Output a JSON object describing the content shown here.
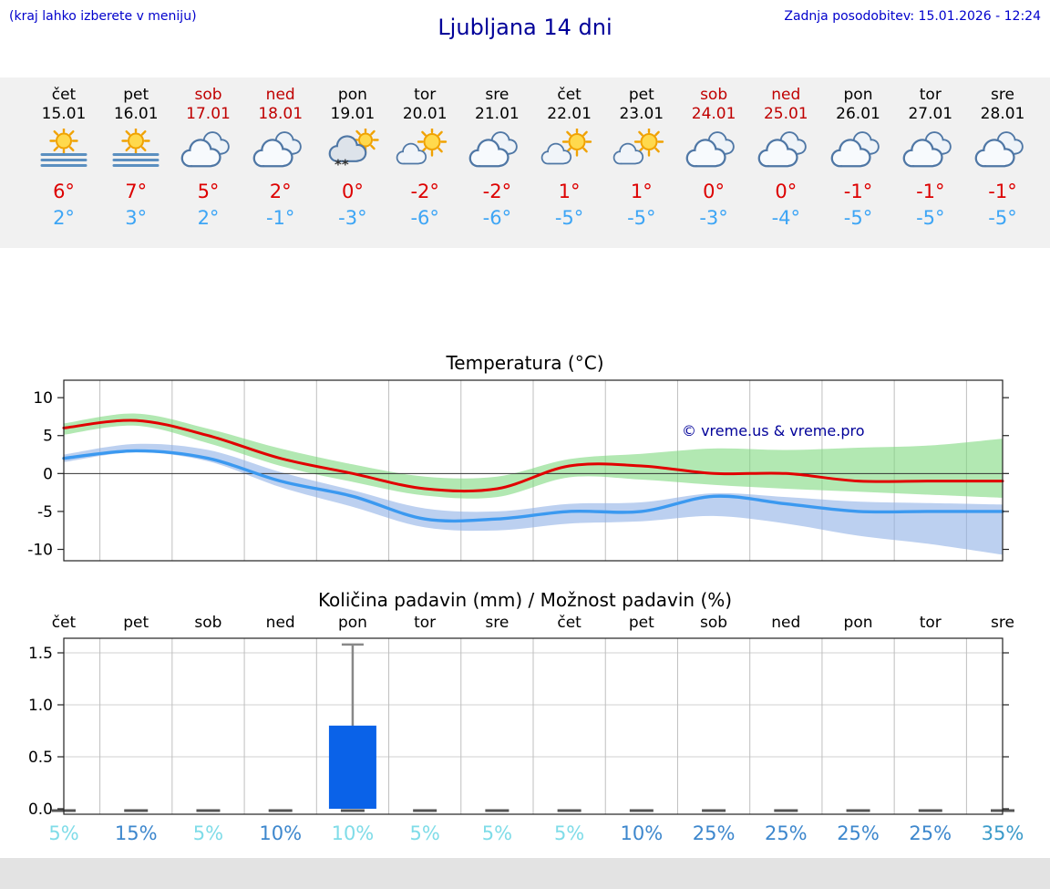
{
  "header": {
    "hint": "(kraj lahko izberete v meniju)",
    "title": "Ljubljana 14 dni",
    "updated": "Zadnja posodobitev: 15.01.2026 - 12:24"
  },
  "colors": {
    "link_blue": "#0000cc",
    "title_blue": "#000099",
    "strip_background": "#f1f1f1",
    "weekend_red": "#c00000",
    "high_temp_red": "#dd0000",
    "low_temp_blue": "#3da5f5",
    "bar_blue": "#0a62e8",
    "footer_gray": "#e3e3e3"
  },
  "forecast": {
    "days": [
      {
        "name": "čet",
        "date": "15.01",
        "weekend": false,
        "icon": "sun-fog",
        "high": "6°",
        "low": "2°"
      },
      {
        "name": "pet",
        "date": "16.01",
        "weekend": false,
        "icon": "sun-fog",
        "high": "7°",
        "low": "3°"
      },
      {
        "name": "sob",
        "date": "17.01",
        "weekend": true,
        "icon": "cloudy",
        "high": "5°",
        "low": "2°"
      },
      {
        "name": "ned",
        "date": "18.01",
        "weekend": true,
        "icon": "cloudy",
        "high": "2°",
        "low": "-1°"
      },
      {
        "name": "pon",
        "date": "19.01",
        "weekend": false,
        "icon": "snow-sun",
        "high": "0°",
        "low": "-3°"
      },
      {
        "name": "tor",
        "date": "20.01",
        "weekend": false,
        "icon": "sun-cloud",
        "high": "-2°",
        "low": "-6°"
      },
      {
        "name": "sre",
        "date": "21.01",
        "weekend": false,
        "icon": "cloudy",
        "high": "-2°",
        "low": "-6°"
      },
      {
        "name": "čet",
        "date": "22.01",
        "weekend": false,
        "icon": "sun-cloud",
        "high": "1°",
        "low": "-5°"
      },
      {
        "name": "pet",
        "date": "23.01",
        "weekend": false,
        "icon": "sun-cloud",
        "high": "1°",
        "low": "-5°"
      },
      {
        "name": "sob",
        "date": "24.01",
        "weekend": true,
        "icon": "cloudy",
        "high": "0°",
        "low": "-3°"
      },
      {
        "name": "ned",
        "date": "25.01",
        "weekend": true,
        "icon": "cloudy",
        "high": "0°",
        "low": "-4°"
      },
      {
        "name": "pon",
        "date": "26.01",
        "weekend": false,
        "icon": "cloudy",
        "high": "-1°",
        "low": "-5°"
      },
      {
        "name": "tor",
        "date": "27.01",
        "weekend": false,
        "icon": "cloudy",
        "high": "-1°",
        "low": "-5°"
      },
      {
        "name": "sre",
        "date": "28.01",
        "weekend": false,
        "icon": "cloudy",
        "high": "-1°",
        "low": "-5°"
      }
    ]
  },
  "chart_data": [
    {
      "type": "line",
      "title": "Temperatura (°C)",
      "x_categories": [
        "čet",
        "pet",
        "sob",
        "ned",
        "pon",
        "tor",
        "sre",
        "čet",
        "pet",
        "sob",
        "ned",
        "pon",
        "tor",
        "sre"
      ],
      "yticks": [
        10,
        5,
        0,
        -5,
        -10
      ],
      "ylim": [
        -11.5,
        12.3
      ],
      "grid": "vertical day separators, dark zero line, black frame",
      "watermark": "© vreme.us & vreme.pro",
      "watermark_color": "#000099",
      "series": [
        {
          "name": "max temperature",
          "color": "#e10000",
          "width": 3,
          "values": [
            6,
            7,
            5,
            2,
            0,
            -2,
            -2,
            1,
            1,
            0,
            0,
            -1,
            -1,
            -1
          ]
        },
        {
          "name": "min temperature",
          "color": "#3b99f0",
          "width": 3.4,
          "values": [
            2,
            3,
            2,
            -1,
            -3,
            -6,
            -6,
            -5,
            -5,
            -3,
            -4,
            -5,
            -5,
            -5
          ]
        }
      ],
      "bands": [
        {
          "name": "max-uncertainty",
          "color": "#7fd87f",
          "opacity": 0.6,
          "upper": [
            6.6,
            7.9,
            5.9,
            3.3,
            1.2,
            -0.4,
            -0.4,
            1.9,
            2.6,
            3.3,
            3.1,
            3.4,
            3.7,
            4.6
          ],
          "lower": [
            5.1,
            6.3,
            4,
            1,
            -1.1,
            -2.9,
            -3.1,
            -0.5,
            -0.8,
            -1.5,
            -2,
            -2.4,
            -2.8,
            -3.2
          ]
        },
        {
          "name": "min-uncertainty",
          "color": "#8fb0e6",
          "opacity": 0.6,
          "upper": [
            2.5,
            3.9,
            3.1,
            0.2,
            -2.2,
            -4.6,
            -5,
            -4,
            -3.8,
            -2.6,
            -3.1,
            -3.7,
            -3.9,
            -4.1
          ],
          "lower": [
            1.5,
            2.8,
            1.6,
            -1.8,
            -4.4,
            -7.1,
            -7.5,
            -6.6,
            -6.3,
            -5.6,
            -6.6,
            -8.2,
            -9.3,
            -10.7
          ]
        }
      ]
    },
    {
      "type": "bar",
      "title": "Količina padavin (mm) / Možnost padavin (%)",
      "categories": [
        "čet",
        "pet",
        "sob",
        "ned",
        "pon",
        "tor",
        "sre",
        "čet",
        "pet",
        "sob",
        "ned",
        "pon",
        "tor",
        "sre"
      ],
      "values": [
        0,
        0,
        0,
        0,
        0.8,
        0,
        0,
        0,
        0,
        0,
        0,
        0,
        0,
        0
      ],
      "bar_color": "#0a62e8",
      "whiskers": [
        {
          "day_index": 4,
          "low": 0,
          "high": 1.58
        }
      ],
      "yticks": [
        0,
        0.5,
        1,
        1.5
      ],
      "ylim": [
        0,
        1.64
      ],
      "probabilities": [
        {
          "label": "5%",
          "color": "#7fdce8"
        },
        {
          "label": "15%",
          "color": "#3d87cd"
        },
        {
          "label": "5%",
          "color": "#7fdce8"
        },
        {
          "label": "10%",
          "color": "#3d87cd"
        },
        {
          "label": "10%",
          "color": "#7fdce8"
        },
        {
          "label": "5%",
          "color": "#7fdce8"
        },
        {
          "label": "5%",
          "color": "#7fdce8"
        },
        {
          "label": "5%",
          "color": "#7fdce8"
        },
        {
          "label": "10%",
          "color": "#3d87cd"
        },
        {
          "label": "25%",
          "color": "#3d87cd"
        },
        {
          "label": "25%",
          "color": "#3d87cd"
        },
        {
          "label": "25%",
          "color": "#3d87cd"
        },
        {
          "label": "25%",
          "color": "#3d87cd"
        },
        {
          "label": "35%",
          "color": "#3a9ac9"
        }
      ]
    }
  ]
}
